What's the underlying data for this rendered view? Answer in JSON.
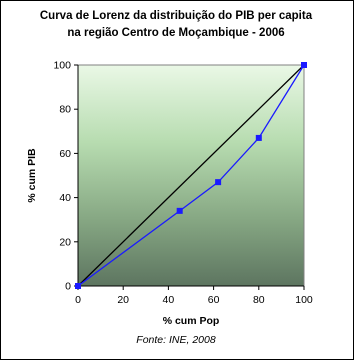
{
  "chart_data": {
    "type": "line",
    "title_lines": [
      "Curva de Lorenz da distribuição do PIB per capita",
      "na região Centro de Moçambique - 2006"
    ],
    "xlabel": "% cum Pop",
    "ylabel": "% cum PIB",
    "xlim": [
      0,
      100
    ],
    "ylim": [
      0,
      100
    ],
    "x_ticks": [
      0,
      20,
      40,
      60,
      80,
      100
    ],
    "y_ticks": [
      0,
      20,
      40,
      60,
      80,
      100
    ],
    "grid": false,
    "legend": "none",
    "background": "vertical gradient from light green (top) to dark green-gray (bottom)",
    "series": [
      {
        "role": "equality line",
        "color": "#000000",
        "x": [
          0,
          100
        ],
        "y": [
          0,
          100
        ],
        "markers": false
      },
      {
        "role": "lorenz curve",
        "color": "#1a1aff",
        "x": [
          0,
          45,
          62,
          80,
          100
        ],
        "y": [
          0,
          34,
          47,
          67,
          100
        ],
        "markers": true,
        "marker_shape": "square"
      }
    ],
    "source_note": "Fonte: INE, 2008"
  }
}
